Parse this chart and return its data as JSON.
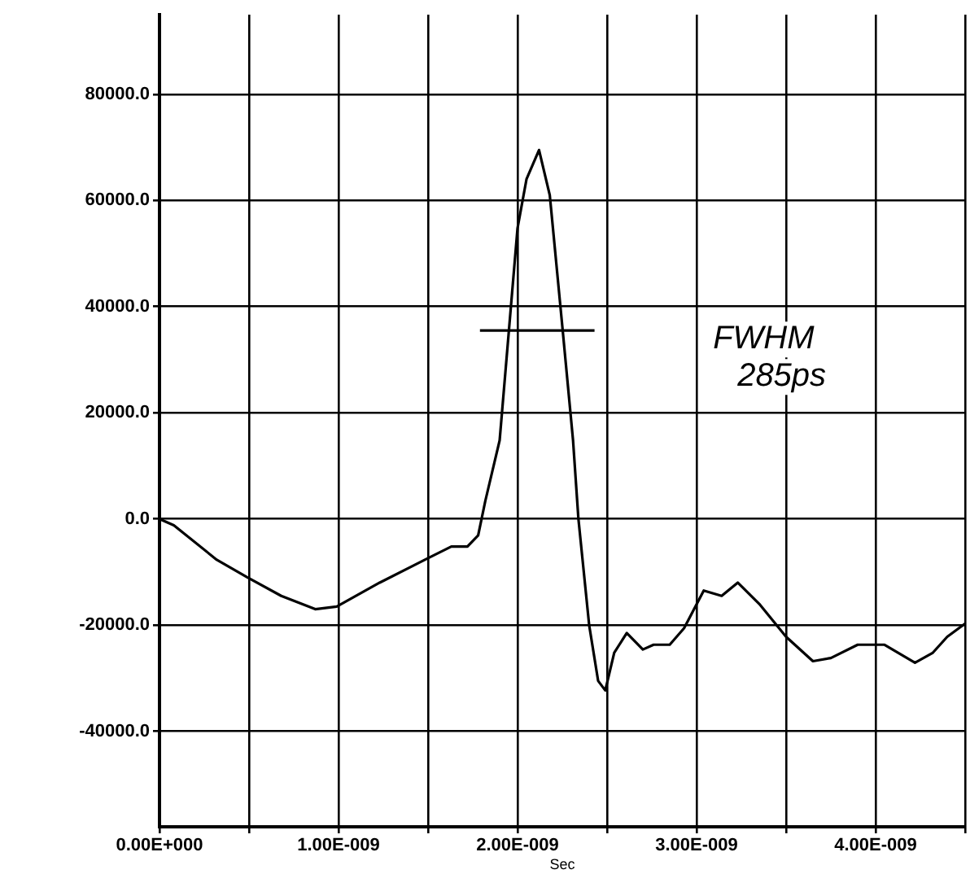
{
  "chart_data": {
    "type": "line",
    "xlabel": "Sec",
    "annotations": [
      "FWHM 285ps"
    ],
    "xlim": [
      0,
      4.5e-09
    ],
    "ylim": [
      -58000,
      95000
    ],
    "xticks": [
      {
        "value": 0,
        "label": "0.00E+000"
      },
      {
        "value": 5e-10,
        "label": null
      },
      {
        "value": 1e-09,
        "label": "1.00E-009"
      },
      {
        "value": 1.5e-09,
        "label": null
      },
      {
        "value": 2e-09,
        "label": "2.00E-009"
      },
      {
        "value": 2.5e-09,
        "label": null
      },
      {
        "value": 3e-09,
        "label": "3.00E-009"
      },
      {
        "value": 3.5e-09,
        "label": null
      },
      {
        "value": 4e-09,
        "label": "4.00E-009"
      },
      {
        "value": 4.5e-09,
        "label": null
      }
    ],
    "yticks": [
      {
        "value": -40000,
        "label": "-40000.0"
      },
      {
        "value": -20000,
        "label": "-20000.0"
      },
      {
        "value": 0,
        "label": "0.0"
      },
      {
        "value": 20000,
        "label": "20000.0"
      },
      {
        "value": 40000,
        "label": "40000.0"
      },
      {
        "value": 60000,
        "label": "60000.0"
      },
      {
        "value": 80000,
        "label": "80000.0"
      }
    ],
    "grid": true,
    "marker": "none",
    "line_style": "solid",
    "series": [
      {
        "color": "#000000",
        "x": [
          0,
          8e-11,
          3.2e-10,
          4.9e-10,
          6.8e-10,
          8.7e-10,
          9.9e-10,
          1.23e-09,
          1.5e-09,
          1.63e-09,
          1.72e-09,
          1.78e-09,
          1.82e-09,
          1.9e-09,
          2e-09,
          2.05e-09,
          2.12e-09,
          2.18e-09,
          2.25e-09,
          2.31e-09,
          2.34e-09,
          2.4e-09,
          2.45e-09,
          2.49e-09,
          2.54e-09,
          2.61e-09,
          2.7e-09,
          2.76e-09,
          2.85e-09,
          2.93e-09,
          3.04e-09,
          3.14e-09,
          3.23e-09,
          3.35e-09,
          3.5e-09,
          3.65e-09,
          3.75e-09,
          3.9e-09,
          4.05e-09,
          4.22e-09,
          4.32e-09,
          4.4e-09,
          4.5e-09
        ],
        "values": [
          0,
          -1200,
          -7700,
          -11000,
          -14500,
          -17000,
          -16500,
          -12000,
          -7400,
          -5200,
          -5200,
          -3100,
          3400,
          14800,
          54800,
          64000,
          69500,
          61000,
          36300,
          14800,
          0,
          -20000,
          -30500,
          -32300,
          -25200,
          -21500,
          -24600,
          -23700,
          -23700,
          -20600,
          -13500,
          -14500,
          -12000,
          -16000,
          -22200,
          -26800,
          -26200,
          -23700,
          -23700,
          -27100,
          -25200,
          -22200,
          -19700
        ]
      },
      {
        "color": "#000000",
        "type": "line",
        "x": [
          1.79e-09,
          2.43e-09
        ],
        "values": [
          35500,
          35500
        ]
      }
    ]
  }
}
